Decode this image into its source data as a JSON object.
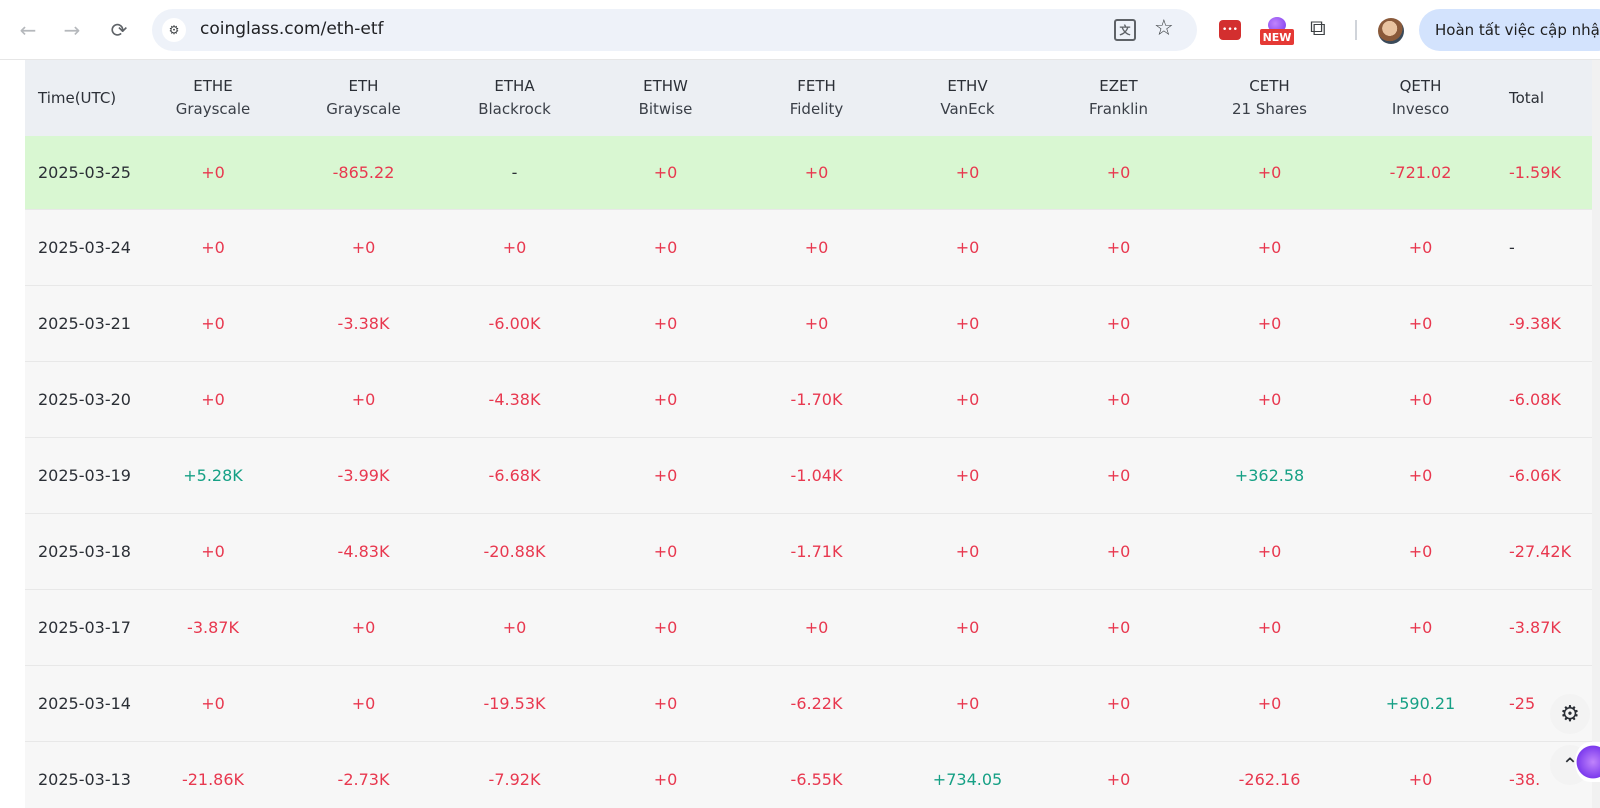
{
  "browser": {
    "url": "coinglass.com/eth-etf",
    "update_button_label": "Hoàn tất việc cập nhật",
    "new_badge": "NEW"
  },
  "table": {
    "time_header": "Time(UTC)",
    "total_header": "Total",
    "columns": [
      {
        "ticker": "ETHE",
        "issuer": "Grayscale"
      },
      {
        "ticker": "ETH",
        "issuer": "Grayscale"
      },
      {
        "ticker": "ETHA",
        "issuer": "Blackrock"
      },
      {
        "ticker": "ETHW",
        "issuer": "Bitwise"
      },
      {
        "ticker": "FETH",
        "issuer": "Fidelity"
      },
      {
        "ticker": "ETHV",
        "issuer": "VanEck"
      },
      {
        "ticker": "EZET",
        "issuer": "Franklin"
      },
      {
        "ticker": "CETH",
        "issuer": "21 Shares"
      },
      {
        "ticker": "QETH",
        "issuer": "Invesco"
      }
    ],
    "rows": [
      {
        "date": "2025-03-25",
        "highlight": true,
        "values": [
          "+0",
          "-865.22",
          "-",
          "+0",
          "+0",
          "+0",
          "+0",
          "+0",
          "-721.02"
        ],
        "total": "-1.59K"
      },
      {
        "date": "2025-03-24",
        "highlight": false,
        "values": [
          "+0",
          "+0",
          "+0",
          "+0",
          "+0",
          "+0",
          "+0",
          "+0",
          "+0"
        ],
        "total": "-"
      },
      {
        "date": "2025-03-21",
        "highlight": false,
        "values": [
          "+0",
          "-3.38K",
          "-6.00K",
          "+0",
          "+0",
          "+0",
          "+0",
          "+0",
          "+0"
        ],
        "total": "-9.38K"
      },
      {
        "date": "2025-03-20",
        "highlight": false,
        "values": [
          "+0",
          "+0",
          "-4.38K",
          "+0",
          "-1.70K",
          "+0",
          "+0",
          "+0",
          "+0"
        ],
        "total": "-6.08K"
      },
      {
        "date": "2025-03-19",
        "highlight": false,
        "values": [
          "+5.28K",
          "-3.99K",
          "-6.68K",
          "+0",
          "-1.04K",
          "+0",
          "+0",
          "+362.58",
          "+0"
        ],
        "total": "-6.06K"
      },
      {
        "date": "2025-03-18",
        "highlight": false,
        "values": [
          "+0",
          "-4.83K",
          "-20.88K",
          "+0",
          "-1.71K",
          "+0",
          "+0",
          "+0",
          "+0"
        ],
        "total": "-27.42K"
      },
      {
        "date": "2025-03-17",
        "highlight": false,
        "values": [
          "-3.87K",
          "+0",
          "+0",
          "+0",
          "+0",
          "+0",
          "+0",
          "+0",
          "+0"
        ],
        "total": "-3.87K"
      },
      {
        "date": "2025-03-14",
        "highlight": false,
        "values": [
          "+0",
          "+0",
          "-19.53K",
          "+0",
          "-6.22K",
          "+0",
          "+0",
          "+0",
          "+590.21"
        ],
        "total": "-25"
      },
      {
        "date": "2025-03-13",
        "highlight": false,
        "values": [
          "-21.86K",
          "-2.73K",
          "-7.92K",
          "+0",
          "-6.55K",
          "+734.05",
          "+0",
          "-262.16",
          "+0"
        ],
        "total": "-38."
      }
    ]
  },
  "colors": {
    "negative": "#e8384f",
    "positive": "#16a085",
    "highlight_row": "#d9f7d2",
    "header_bg": "#eceff3"
  }
}
